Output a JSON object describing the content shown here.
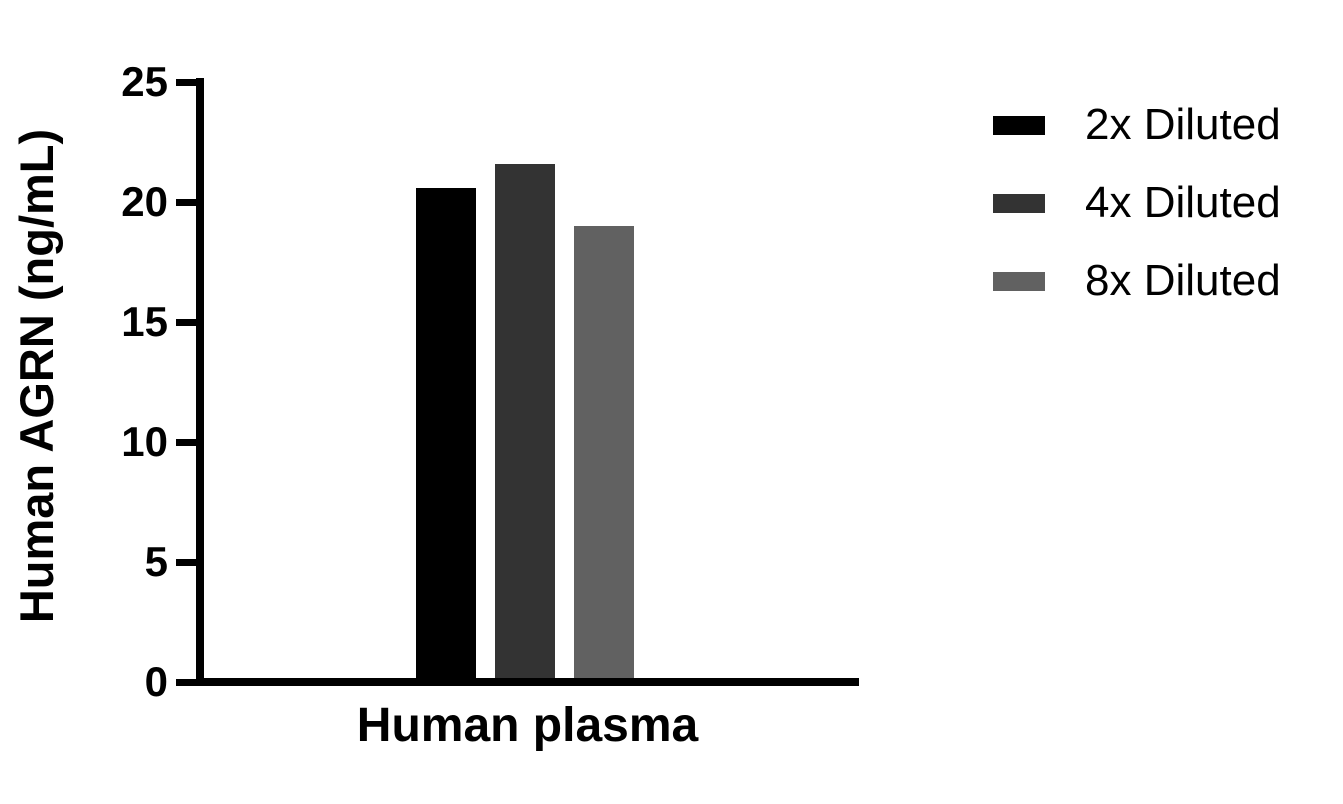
{
  "chart_data": {
    "type": "bar",
    "categories": [
      "Human plasma"
    ],
    "series": [
      {
        "name": "2x Diluted",
        "color": "#000000",
        "values": [
          20.6
        ]
      },
      {
        "name": "4x Diluted",
        "color": "#333333",
        "values": [
          21.6
        ]
      },
      {
        "name": "8x Diluted",
        "color": "#616161",
        "values": [
          19.0
        ]
      }
    ],
    "xlabel": "Human plasma",
    "ylabel": "Human AGRN (ng/mL)",
    "ylim": [
      0,
      25
    ],
    "yticks": [
      0,
      5,
      10,
      15,
      20,
      25
    ],
    "grid": false,
    "legend_position": "right",
    "axis_color": "#000000",
    "background": "#ffffff"
  }
}
